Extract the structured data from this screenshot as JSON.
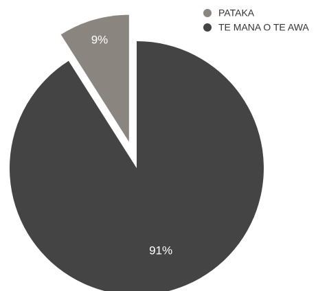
{
  "chart_data": {
    "type": "pie",
    "categories": [
      "PATAKA",
      "TE MANA O TE AWA"
    ],
    "values": [
      9,
      91
    ],
    "value_labels": [
      "9%",
      "91%"
    ],
    "colors": [
      "#8a857f",
      "#444444"
    ],
    "legend": "top-right"
  }
}
